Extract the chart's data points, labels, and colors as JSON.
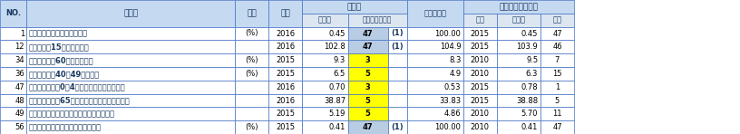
{
  "rows": [
    {
      "no": "1",
      "name": "全国総人口に占める人口割合",
      "unit": "(%)",
      "year": "2016",
      "val": "0.45",
      "rank": "47",
      "rank_note": "(1)",
      "national": "100.00",
      "ref_year": "2015",
      "ref_val": "0.45",
      "ref_rank": "47",
      "rank_color": "light_blue"
    },
    {
      "no": "12",
      "name": "人口性比［15歳未満人口］",
      "unit": "",
      "year": "2016",
      "val": "102.8",
      "rank": "47",
      "rank_note": "(1)",
      "national": "104.9",
      "ref_year": "2015",
      "ref_val": "103.9",
      "ref_rank": "46",
      "rank_color": "light_blue"
    },
    {
      "no": "34",
      "name": "死別者割合［60歳以上・男］",
      "unit": "(%)",
      "year": "2015",
      "val": "9.3",
      "rank": "3",
      "rank_note": "",
      "national": "8.3",
      "ref_year": "2010",
      "ref_val": "9.5",
      "ref_rank": "7",
      "rank_color": "yellow"
    },
    {
      "no": "36",
      "name": "離別者割合［40〜49歳・男］",
      "unit": "(%)",
      "year": "2015",
      "val": "6.5",
      "rank": "5",
      "rank_note": "",
      "national": "4.9",
      "ref_year": "2010",
      "ref_val": "6.3",
      "ref_rank": "15",
      "rank_color": "yellow"
    },
    {
      "no": "47",
      "name": "年齢別死亡率［0〜4歳］（人口千人当たり）",
      "unit": "",
      "year": "2016",
      "val": "0.70",
      "rank": "3",
      "rank_note": "",
      "national": "0.53",
      "ref_year": "2015",
      "ref_val": "0.78",
      "ref_rank": "1",
      "rank_color": "yellow"
    },
    {
      "no": "48",
      "name": "年齢別死亡率［65歳以上］（人口千人当たり）",
      "unit": "",
      "year": "2016",
      "val": "38.87",
      "rank": "5",
      "rank_note": "",
      "national": "33.83",
      "ref_year": "2015",
      "ref_val": "38.88",
      "ref_rank": "5",
      "rank_color": "yellow"
    },
    {
      "no": "49",
      "name": "年齢調整死亡率［男］（人口千人当たり）",
      "unit": "",
      "year": "2015",
      "val": "5.19",
      "rank": "5",
      "rank_note": "",
      "national": "4.86",
      "ref_year": "2010",
      "ref_val": "5.70",
      "ref_rank": "11",
      "rank_color": "yellow"
    },
    {
      "no": "56",
      "name": "全国一般世帯に占める一般世帯割合",
      "unit": "(%)",
      "year": "2015",
      "val": "0.41",
      "rank": "47",
      "rank_note": "(1)",
      "national": "100.00",
      "ref_year": "2010",
      "ref_val": "0.41",
      "ref_rank": "47",
      "rank_color": "light_blue"
    }
  ],
  "header_bg": "#c5d9f1",
  "header_bg2": "#dce6f1",
  "border_color": "#4472c4",
  "yellow": "#ffff00",
  "light_blue": "#b8cce4",
  "title_color": "#17375e",
  "figsize": [
    8.16,
    1.48
  ],
  "dpi": 100
}
